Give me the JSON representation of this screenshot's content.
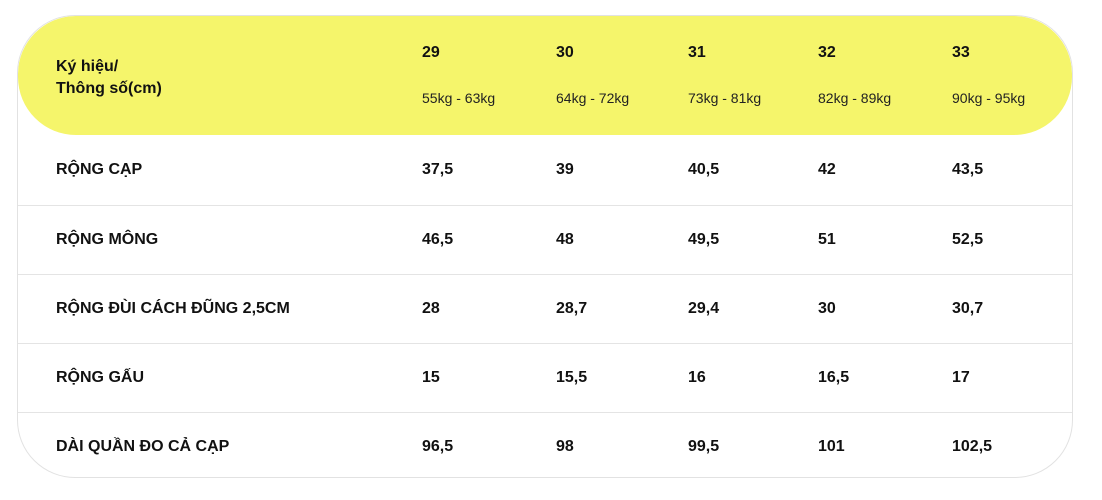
{
  "table": {
    "header": {
      "label_line1": "Ký hiệu/",
      "label_line2": "Thông số(cm)",
      "sizes": [
        {
          "size": "29",
          "weight": "55kg - 63kg"
        },
        {
          "size": "30",
          "weight": "64kg - 72kg"
        },
        {
          "size": "31",
          "weight": "73kg - 81kg"
        },
        {
          "size": "32",
          "weight": "82kg - 89kg"
        },
        {
          "size": "33",
          "weight": "90kg - 95kg"
        }
      ]
    },
    "rows": [
      {
        "label": "RỘNG CẠP",
        "values": [
          "37,5",
          "39",
          "40,5",
          "42",
          "43,5"
        ]
      },
      {
        "label": "RỘNG MÔNG",
        "values": [
          "46,5",
          "48",
          "49,5",
          "51",
          "52,5"
        ]
      },
      {
        "label": "RỘNG ĐÙI CÁCH ĐŨNG 2,5CM",
        "values": [
          "28",
          "28,7",
          "29,4",
          "30",
          "30,7"
        ]
      },
      {
        "label": "RỘNG GẤU",
        "values": [
          "15",
          "15,5",
          "16",
          "16,5",
          "17"
        ]
      },
      {
        "label": "DÀI QUẦN ĐO CẢ CẠP",
        "values": [
          "96,5",
          "98",
          "99,5",
          "101",
          "102,5"
        ]
      }
    ]
  },
  "colors": {
    "header_background": "#f5f56b",
    "border": "#e2e2e2",
    "text": "#111111"
  }
}
